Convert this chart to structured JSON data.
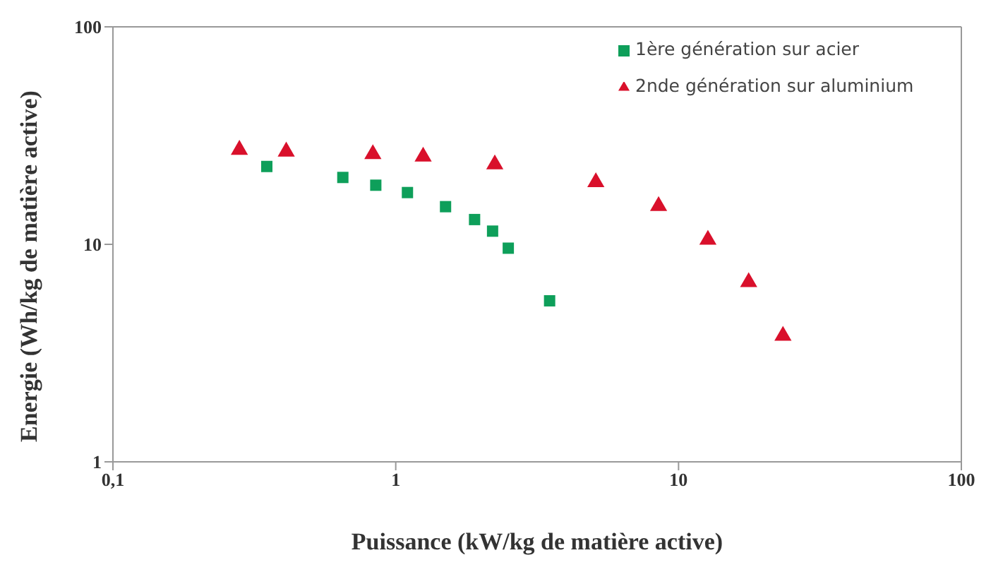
{
  "chart_data": {
    "type": "scatter",
    "xlabel": "Puissance (kW/kg de matière active)",
    "ylabel": "Energie (Wh/kg de matière active)",
    "log": "xy",
    "xlim": [
      0.1,
      100
    ],
    "ylim": [
      1,
      100
    ],
    "xticks": [
      {
        "value": 0.1,
        "label": "0,1"
      },
      1,
      10,
      100
    ],
    "yticks": [
      1,
      10,
      100
    ],
    "grid": false,
    "legend": "top right",
    "series": [
      {
        "name": "1ère génération sur acier",
        "color": "#0e9f5a",
        "marker": "square",
        "x": [
          0.35,
          0.65,
          0.85,
          1.1,
          1.5,
          1.9,
          2.2,
          2.5,
          3.5
        ],
        "values": [
          22.8,
          20.3,
          18.7,
          17.3,
          14.9,
          13,
          11.5,
          9.6,
          5.5
        ]
      },
      {
        "name": "2nde génération sur aluminium",
        "color": "#d9102b",
        "marker": "triangle",
        "x": [
          0.28,
          0.41,
          0.83,
          1.25,
          2.24,
          5.1,
          8.5,
          12.7,
          17.7,
          23.4
        ],
        "values": [
          27.2,
          26.7,
          26,
          25.3,
          23.3,
          19.3,
          15,
          10.5,
          6.7,
          3.8
        ]
      }
    ]
  }
}
